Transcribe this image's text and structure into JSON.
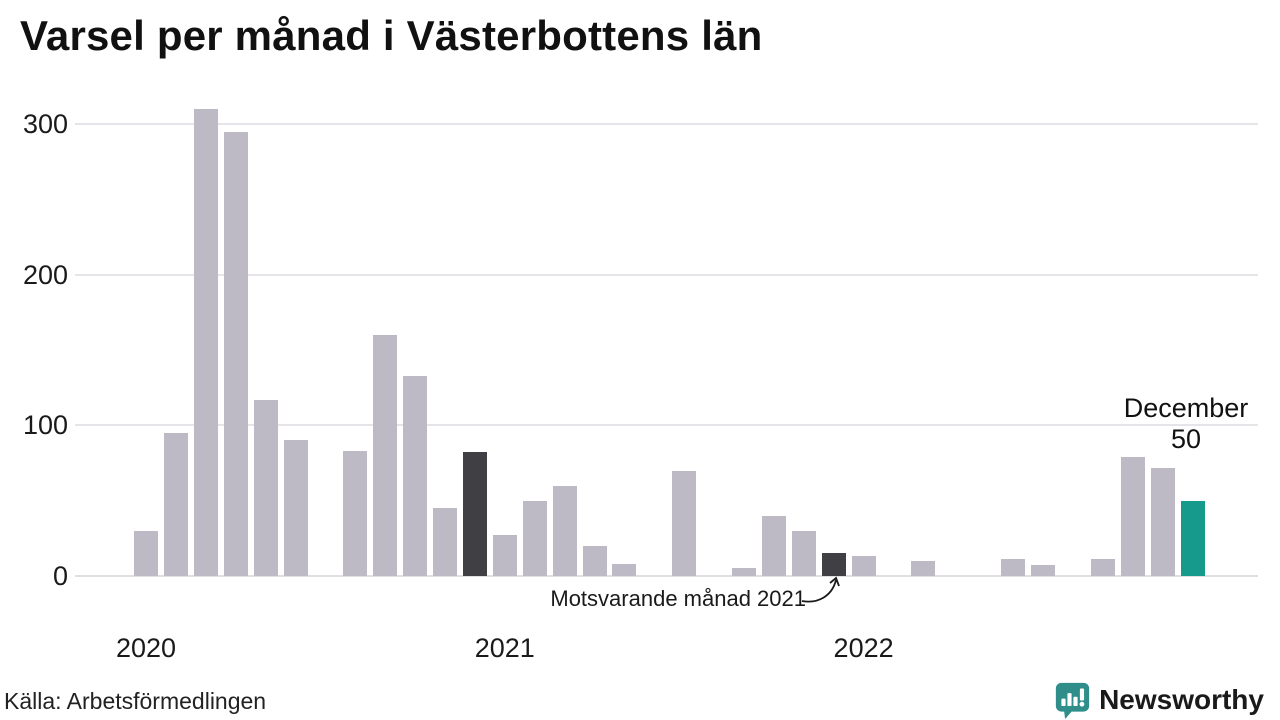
{
  "title": "Varsel per månad i Västerbottens län",
  "source": "Källa: Arbetsförmedlingen",
  "annotation": {
    "text": "Motsvarande månad 2021"
  },
  "highlight_label": {
    "line1": "December",
    "line2": "50"
  },
  "brand": {
    "name": "Newsworthy",
    "color": "#2f8e89"
  },
  "colors": {
    "bar": "#bdb9c5",
    "dark": "#403f43",
    "accent": "#169a8b",
    "grid": "#e6e4e9",
    "text": "#1a1a1a"
  },
  "chart_data": {
    "type": "bar",
    "title": "Varsel per månad i Västerbottens län",
    "x_tick_labels": [
      "2020",
      "2021",
      "2022"
    ],
    "y_ticks": [
      0,
      100,
      200,
      300
    ],
    "ylim": [
      0,
      315
    ],
    "grid": "horizontal",
    "legend": "none",
    "month_order": "Jan-Dec per year, missing bars = 0",
    "series": [
      {
        "name": "2020",
        "values": [
          30,
          95,
          310,
          295,
          117,
          90,
          0,
          83,
          160,
          133,
          45,
          82
        ]
      },
      {
        "name": "2021",
        "values": [
          27,
          50,
          60,
          20,
          8,
          0,
          70,
          0,
          5,
          40,
          30,
          15
        ]
      },
      {
        "name": "2022",
        "values": [
          13,
          0,
          10,
          0,
          0,
          11,
          7,
          0,
          11,
          79,
          72,
          50
        ]
      }
    ],
    "highlights": [
      {
        "series": "2020",
        "month_index": 11,
        "style": "dark"
      },
      {
        "series": "2021",
        "month_index": 11,
        "style": "dark",
        "annotation": "Motsvarande månad 2021"
      },
      {
        "series": "2022",
        "month_index": 11,
        "style": "accent",
        "annotation": "December 50"
      }
    ]
  }
}
